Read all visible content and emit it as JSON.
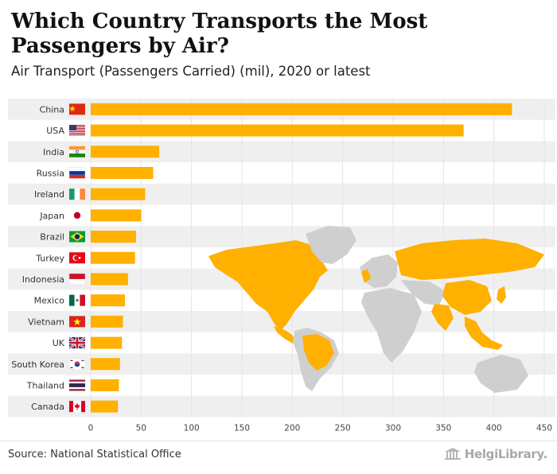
{
  "title": "Which Country Transports the Most Passengers by Air?",
  "subtitle": "Air Transport (Passengers Carried) (mil), 2020 or latest",
  "source": "Source: National Statistical Office",
  "logo_text": "HelgiLibrary.",
  "colors": {
    "bar": "#FFB000",
    "row_shade": "#EFEFEF",
    "map_highlight": "#FFB000",
    "map_other": "#CFCFCF"
  },
  "chart_data": {
    "type": "bar",
    "orientation": "horizontal",
    "categories": [
      "China",
      "USA",
      "India",
      "Russia",
      "Ireland",
      "Japan",
      "Brazil",
      "Turkey",
      "Indonesia",
      "Mexico",
      "Vietnam",
      "UK",
      "South Korea",
      "Thailand",
      "Canada"
    ],
    "values": [
      418,
      370,
      68,
      62,
      54,
      50,
      45,
      44,
      37,
      34,
      32,
      31,
      29,
      28,
      27
    ],
    "xlim": [
      0,
      450
    ],
    "xticks": [
      0,
      50,
      100,
      150,
      200,
      250,
      300,
      350,
      400,
      450
    ],
    "grid": true,
    "flag_icons": [
      "flag-china-icon",
      "flag-usa-icon",
      "flag-india-icon",
      "flag-russia-icon",
      "flag-ireland-icon",
      "flag-japan-icon",
      "flag-brazil-icon",
      "flag-turkey-icon",
      "flag-indonesia-icon",
      "flag-mexico-icon",
      "flag-vietnam-icon",
      "flag-uk-icon",
      "flag-south-korea-icon",
      "flag-thailand-icon",
      "flag-canada-icon"
    ]
  }
}
